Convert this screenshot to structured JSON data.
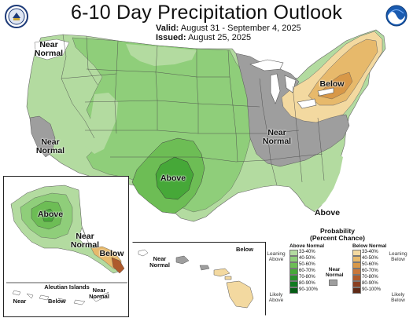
{
  "header": {
    "title": "6-10 Day Precipitation Outlook",
    "valid_label": "Valid:",
    "valid_value": "August 31 - September 4, 2025",
    "issued_label": "Issued:",
    "issued_value": "August 25, 2025"
  },
  "logos": {
    "left": "doc-seal-icon",
    "right": "noaa-logo-icon"
  },
  "map_labels": {
    "northwest": "Near\nNormal",
    "west_coast": "Near\nNormal",
    "southwest_plains": "Above",
    "great_lakes": "Near\nNormal",
    "northeast": "Below",
    "southeast": "Above"
  },
  "alaska_labels": {
    "above": "Above",
    "near_normal": "Near\nNormal",
    "below": "Below",
    "aleutian": "Aleutian Islands",
    "aleutian_near": "Near\nNormal",
    "aleutian_below": "Below",
    "aleutian_near2": "Near"
  },
  "hawaii_labels": {
    "near_normal": "Near\nNormal",
    "below": "Below"
  },
  "legend": {
    "title": "Probability\n(Percent Chance)",
    "above_head": "Above Normal",
    "below_head": "Below Normal",
    "near_head": "Near\nNormal",
    "leaning_above": "Leaning\nAbove",
    "likely_above": "Likely\nAbove",
    "leaning_below": "Leaning\nBelow",
    "likely_below": "Likely\nBelow",
    "bins": [
      "33-40%",
      "40-50%",
      "50-60%",
      "60-70%",
      "70-80%",
      "80-90%",
      "90-100%"
    ],
    "above_colors": [
      "#b3dba0",
      "#8fce7a",
      "#6dbd55",
      "#46a838",
      "#27902a",
      "#117a1f",
      "#055c14"
    ],
    "below_colors": [
      "#f3d9a0",
      "#e7b96b",
      "#d89848",
      "#c9773a",
      "#ae5a2c",
      "#8a3f21",
      "#5f2a16"
    ],
    "near_color": "#9e9e9e"
  }
}
